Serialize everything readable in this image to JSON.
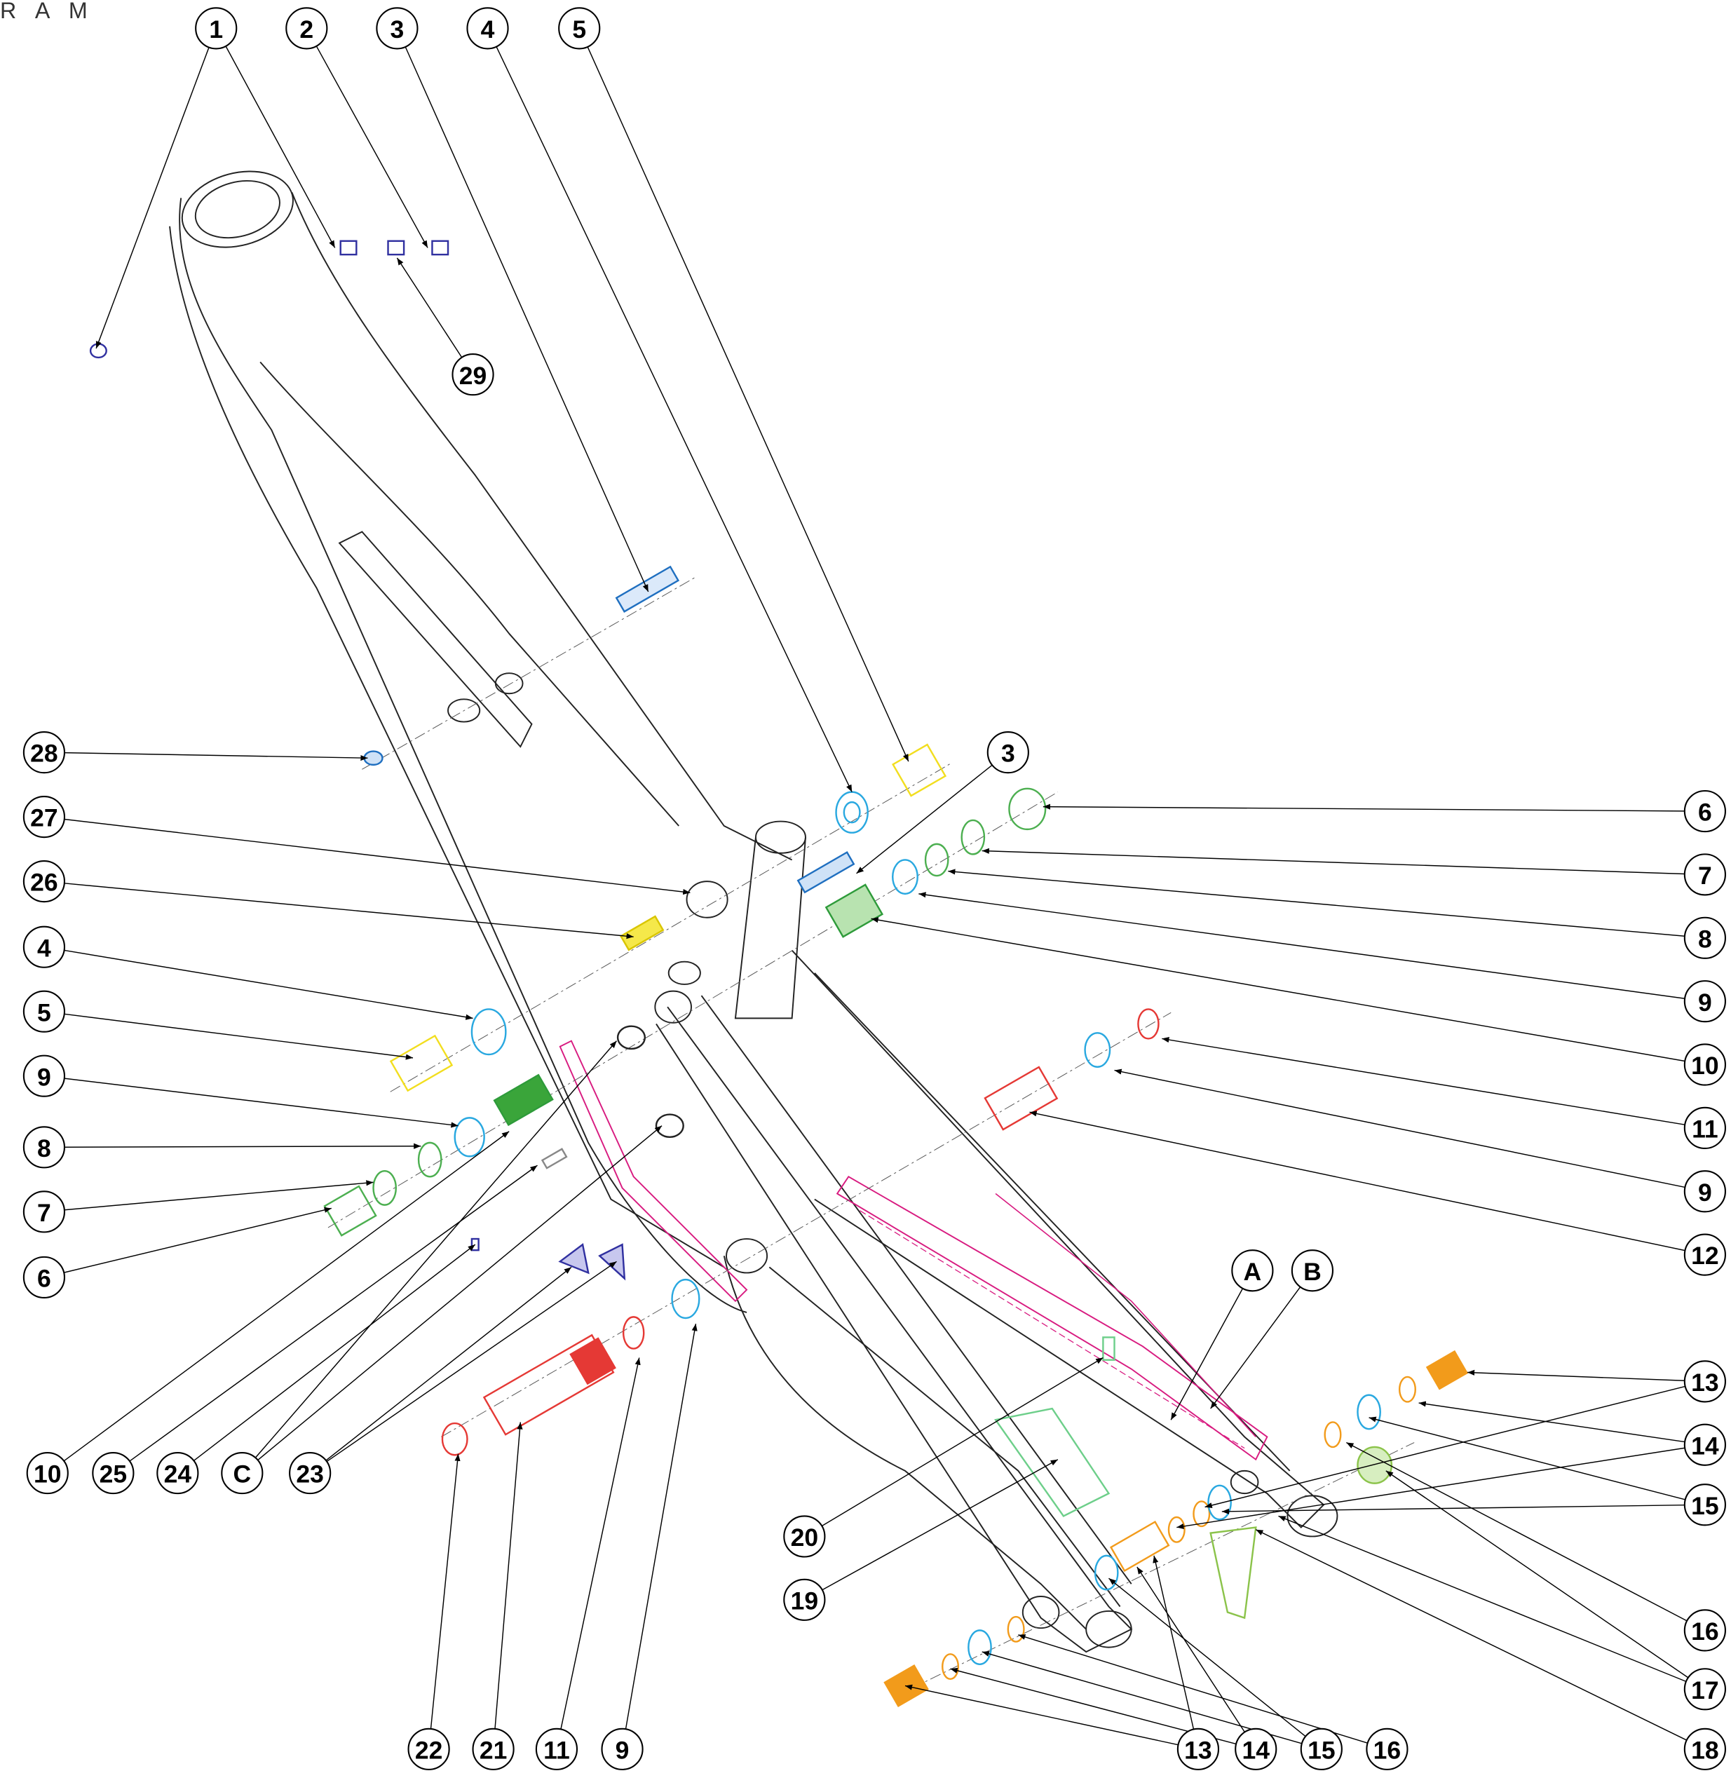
{
  "header": {
    "title": "R A M"
  },
  "callouts": [
    {
      "label": "1"
    },
    {
      "label": "2"
    },
    {
      "label": "3"
    },
    {
      "label": "4"
    },
    {
      "label": "5"
    },
    {
      "label": "29"
    },
    {
      "label": "28"
    },
    {
      "label": "27"
    },
    {
      "label": "26"
    },
    {
      "label": "4"
    },
    {
      "label": "5"
    },
    {
      "label": "9"
    },
    {
      "label": "8"
    },
    {
      "label": "7"
    },
    {
      "label": "6"
    },
    {
      "label": "10"
    },
    {
      "label": "25"
    },
    {
      "label": "24"
    },
    {
      "label": "C"
    },
    {
      "label": "23"
    },
    {
      "label": "3"
    },
    {
      "label": "6"
    },
    {
      "label": "7"
    },
    {
      "label": "8"
    },
    {
      "label": "9"
    },
    {
      "label": "10"
    },
    {
      "label": "11"
    },
    {
      "label": "9"
    },
    {
      "label": "12"
    },
    {
      "label": "13"
    },
    {
      "label": "14"
    },
    {
      "label": "15"
    },
    {
      "label": "16"
    },
    {
      "label": "17"
    },
    {
      "label": "18"
    },
    {
      "label": "A"
    },
    {
      "label": "B"
    },
    {
      "label": "20"
    },
    {
      "label": "19"
    },
    {
      "label": "22"
    },
    {
      "label": "21"
    },
    {
      "label": "11"
    },
    {
      "label": "9"
    },
    {
      "label": "13"
    },
    {
      "label": "14"
    },
    {
      "label": "15"
    },
    {
      "label": "16"
    }
  ]
}
